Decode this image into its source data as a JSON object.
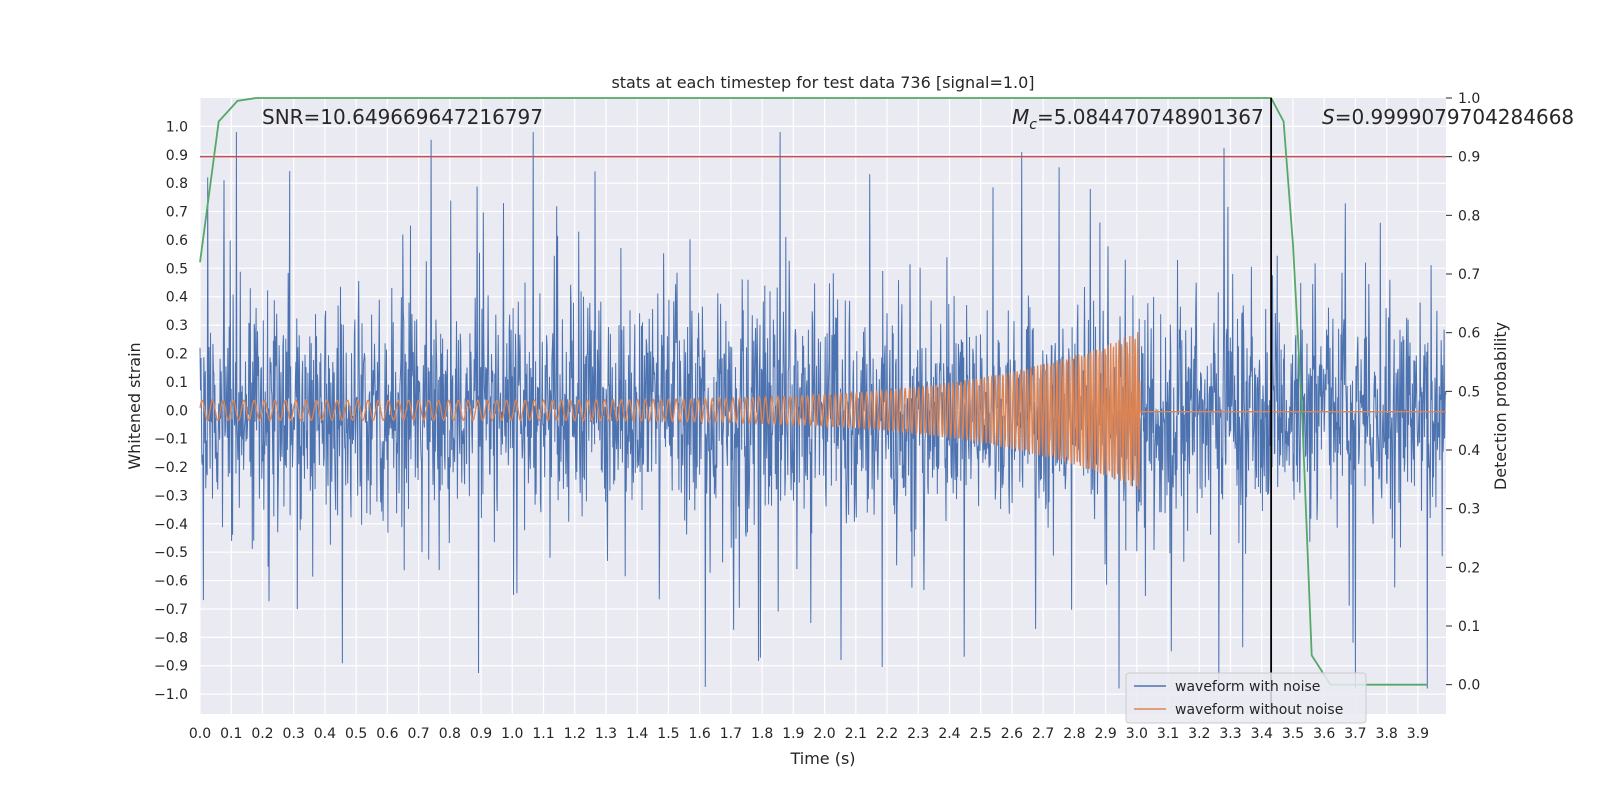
{
  "chart_data": {
    "type": "line",
    "title": "stats at each timestep for test data 736 [signal=1.0]",
    "xlabel": "Time (s)",
    "ylabel": "Whitened strain",
    "ylabel_right": "Detection probability",
    "xlim": [
      0.0,
      3.99
    ],
    "ylim": [
      -1.07,
      1.1
    ],
    "ylim_right": [
      -0.05,
      1.0
    ],
    "x_ticks": [
      "0.0",
      "0.1",
      "0.2",
      "0.3",
      "0.4",
      "0.5",
      "0.6",
      "0.7",
      "0.8",
      "0.9",
      "1.0",
      "1.1",
      "1.2",
      "1.3",
      "1.4",
      "1.5",
      "1.6",
      "1.7",
      "1.8",
      "1.9",
      "2.0",
      "2.1",
      "2.2",
      "2.3",
      "2.4",
      "2.5",
      "2.6",
      "2.7",
      "2.8",
      "2.9",
      "3.0",
      "3.1",
      "3.2",
      "3.3",
      "3.4",
      "3.5",
      "3.6",
      "3.7",
      "3.8",
      "3.9"
    ],
    "y_ticks": [
      "1.0",
      "0.9",
      "0.8",
      "0.7",
      "0.6",
      "0.5",
      "0.4",
      "0.3",
      "0.2",
      "0.1",
      "0.0",
      "−0.1",
      "−0.2",
      "−0.3",
      "−0.4",
      "−0.5",
      "−0.6",
      "−0.7",
      "−0.8",
      "−0.9",
      "−1.0"
    ],
    "y_ticks_right": [
      "1.0",
      "0.9",
      "0.8",
      "0.7",
      "0.6",
      "0.5",
      "0.4",
      "0.3",
      "0.2",
      "0.1",
      "0.0"
    ],
    "annotations": {
      "snr": "SNR=10.649669647216797",
      "mc": "=5.084470748901367",
      "mc_symbol": "M",
      "mc_sub": "c",
      "s": "=0.9999079704284668",
      "s_symbol": "S"
    },
    "threshold_right": 0.9,
    "threshold_color": "#c44e52",
    "detection_time": 3.43,
    "noise_seed": 736,
    "noise_envelope": 0.36,
    "chirp": {
      "start_amp": 0.035,
      "end_amp": 0.28,
      "start_freq": 30,
      "end_freq": 120,
      "merger_time": 3.01
    },
    "series": [
      {
        "name": "waveform with noise",
        "color": "#4c72b0"
      },
      {
        "name": "waveform without noise",
        "color": "#dd8452"
      },
      {
        "name": "Detection probability",
        "color": "#55a868",
        "axis": "right",
        "x": [
          0.0,
          0.06,
          0.12,
          0.18,
          0.3,
          0.6,
          1.0,
          2.0,
          3.0,
          3.43,
          3.47,
          3.5,
          3.53,
          3.56,
          3.62,
          3.8,
          3.93
        ],
        "y": [
          0.72,
          0.96,
          0.995,
          1.0,
          1.0,
          1.0,
          1.0,
          1.0,
          1.0,
          1.0,
          0.96,
          0.75,
          0.45,
          0.05,
          0.0,
          0.0,
          0.0
        ]
      }
    ],
    "legend_location": "bottom-right"
  }
}
